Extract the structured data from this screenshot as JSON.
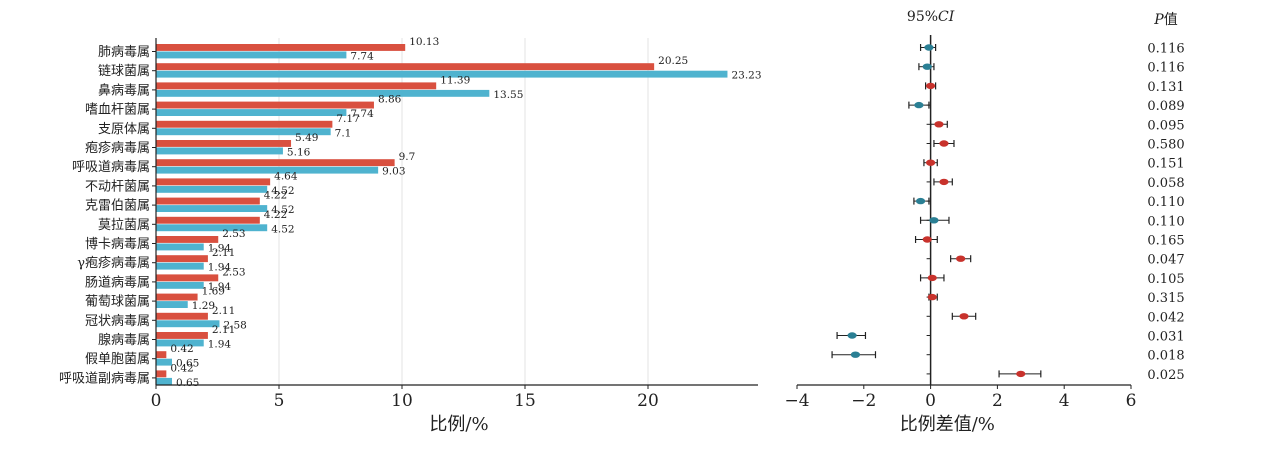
{
  "chart_data": [
    {
      "type": "bar",
      "orientation": "horizontal",
      "categories": [
        "肺病毒属",
        "链球菌属",
        "鼻病毒属",
        "嗜血杆菌属",
        "支原体属",
        "疱疹病毒属",
        "呼吸道病毒属",
        "不动杆菌属",
        "克雷伯菌属",
        "莫拉菌属",
        "博卡病毒属",
        "γ疱疹病毒属",
        "肠道病毒属",
        "葡萄球菌属",
        "冠状病毒属",
        "腺病毒属",
        "假单胞菌属",
        "呼吸道副病毒属"
      ],
      "series": [
        {
          "color": "#d9503f",
          "values": [
            10.13,
            20.25,
            11.39,
            8.86,
            7.17,
            5.49,
            9.7,
            4.64,
            4.22,
            4.22,
            2.53,
            2.11,
            2.53,
            1.69,
            2.11,
            2.11,
            0.42,
            0.42
          ],
          "labels": [
            "10.13",
            "20.25",
            "11.39",
            "8.86",
            "7.17",
            "5.49",
            "9.7",
            "4.64",
            "4.22",
            "4.22",
            "2.53",
            "2.11",
            "2.53",
            "1.69",
            "2.11",
            "2.11",
            "0.42",
            "0.42"
          ]
        },
        {
          "color": "#4fb3cf",
          "values": [
            7.74,
            23.23,
            13.55,
            7.74,
            7.1,
            5.16,
            9.03,
            4.52,
            4.52,
            4.52,
            1.94,
            1.94,
            1.94,
            1.29,
            2.58,
            1.94,
            0.65,
            0.65
          ],
          "labels": [
            "7.74",
            "23.23",
            "13.55",
            "7.74",
            "7.1",
            "5.16",
            "9.03",
            "4.52",
            "4.52",
            "4.52",
            "1.94",
            "1.94",
            "1.94",
            "1.29",
            "2.58",
            "1.94",
            "0.65",
            "0.65"
          ]
        }
      ],
      "xlabel": "比例/%",
      "xlim": [
        0,
        24.5
      ],
      "xticks": [
        "0",
        "5",
        "10",
        "15",
        "20"
      ],
      "grid": "vertical"
    },
    {
      "type": "scatter",
      "subtype": "forest",
      "title": "95%CI",
      "xlabel": "比例差值/%",
      "xlim": [
        -4,
        6
      ],
      "xticks": [
        "−4",
        "−2",
        "0",
        "2",
        "4",
        "6"
      ],
      "p_header": "P值",
      "points": [
        {
          "est": -0.05,
          "lo": -0.3,
          "hi": 0.15,
          "color": "#2a7f94",
          "p": "0.116"
        },
        {
          "est": -0.1,
          "lo": -0.35,
          "hi": 0.1,
          "color": "#2a7f94",
          "p": "0.116"
        },
        {
          "est": 0.0,
          "lo": -0.15,
          "hi": 0.15,
          "color": "#c8322c",
          "p": "0.131"
        },
        {
          "est": -0.35,
          "lo": -0.65,
          "hi": -0.05,
          "color": "#2a7f94",
          "p": "0.089"
        },
        {
          "est": 0.25,
          "lo": 0.0,
          "hi": 0.5,
          "color": "#c8322c",
          "p": "0.095"
        },
        {
          "est": 0.4,
          "lo": 0.1,
          "hi": 0.7,
          "color": "#c8322c",
          "p": "0.580"
        },
        {
          "est": 0.0,
          "lo": -0.2,
          "hi": 0.2,
          "color": "#c8322c",
          "p": "0.151"
        },
        {
          "est": 0.4,
          "lo": 0.1,
          "hi": 0.65,
          "color": "#c8322c",
          "p": "0.058"
        },
        {
          "est": -0.3,
          "lo": -0.5,
          "hi": -0.05,
          "color": "#2a7f94",
          "p": "0.110"
        },
        {
          "est": 0.1,
          "lo": -0.3,
          "hi": 0.55,
          "color": "#2a7f94",
          "p": "0.110"
        },
        {
          "est": -0.1,
          "lo": -0.45,
          "hi": 0.2,
          "color": "#c8322c",
          "p": "0.165"
        },
        {
          "est": 0.9,
          "lo": 0.6,
          "hi": 1.2,
          "color": "#c8322c",
          "p": "0.047"
        },
        {
          "est": 0.05,
          "lo": -0.3,
          "hi": 0.4,
          "color": "#c8322c",
          "p": "0.105"
        },
        {
          "est": 0.05,
          "lo": -0.05,
          "hi": 0.2,
          "color": "#c8322c",
          "p": "0.315"
        },
        {
          "est": 1.0,
          "lo": 0.65,
          "hi": 1.35,
          "color": "#c8322c",
          "p": "0.042"
        },
        {
          "est": -2.35,
          "lo": -2.8,
          "hi": -1.95,
          "color": "#2a7f94",
          "p": "0.031"
        },
        {
          "est": -2.25,
          "lo": -2.95,
          "hi": -1.65,
          "color": "#2a7f94",
          "p": "0.018"
        },
        {
          "est": 2.7,
          "lo": 2.05,
          "hi": 3.3,
          "color": "#c8322c",
          "p": "0.025"
        }
      ]
    }
  ]
}
